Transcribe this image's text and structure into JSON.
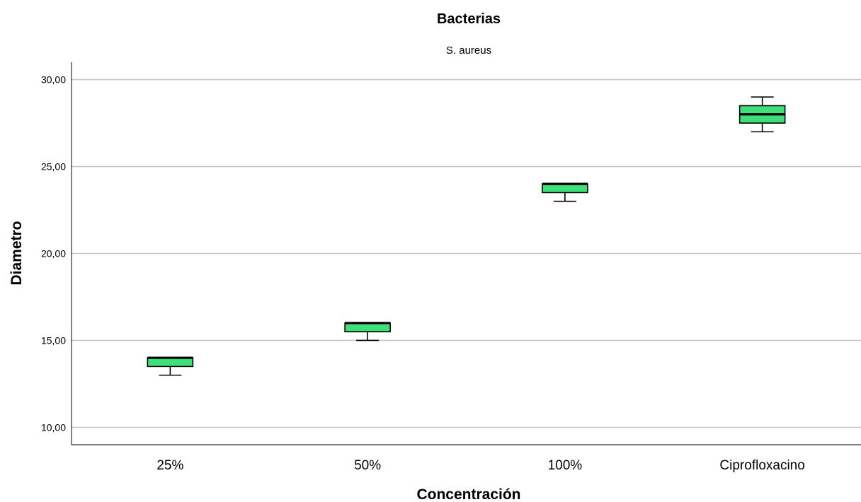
{
  "chart_data": {
    "type": "boxplot",
    "title": "Bacterias",
    "subtitle": "S. aureus",
    "xlabel": "Concentración",
    "ylabel": "Diametro",
    "ylim": [
      9,
      31
    ],
    "yticks": [
      10,
      15,
      20,
      25,
      30
    ],
    "ytick_labels": [
      "10,00",
      "15,00",
      "20,00",
      "25,00",
      "30,00"
    ],
    "grid": true,
    "box_color": "#3ee07a",
    "categories": [
      "25%",
      "50%",
      "100%",
      "Ciprofloxacino"
    ],
    "boxes": [
      {
        "min": 13.0,
        "q1": 13.5,
        "median": 14.0,
        "q3": 14.0,
        "max": 14.0
      },
      {
        "min": 15.0,
        "q1": 15.5,
        "median": 16.0,
        "q3": 16.0,
        "max": 16.0
      },
      {
        "min": 23.0,
        "q1": 23.5,
        "median": 24.0,
        "q3": 24.0,
        "max": 24.0
      },
      {
        "min": 27.0,
        "q1": 27.5,
        "median": 28.0,
        "q3": 28.5,
        "max": 29.0
      }
    ]
  }
}
